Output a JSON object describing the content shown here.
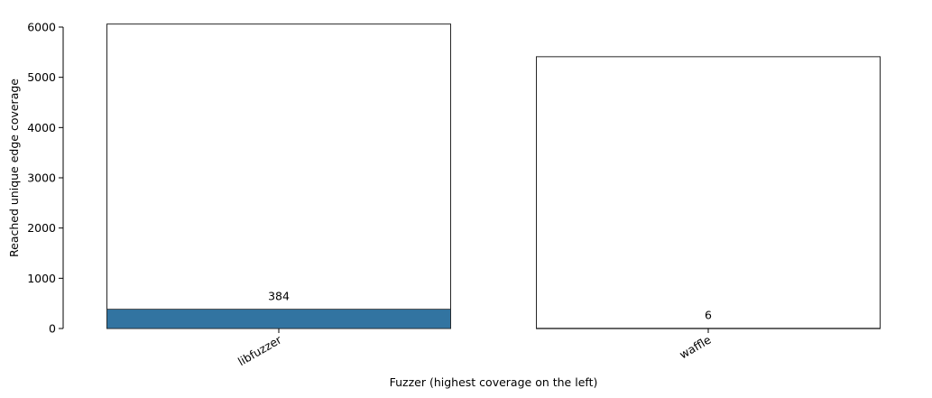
{
  "chart_data": {
    "type": "bar",
    "title": "",
    "xlabel": "Fuzzer (highest coverage on the left)",
    "ylabel": "Reached unique edge coverage",
    "categories": [
      "libfuzzer",
      "waffle"
    ],
    "series": [
      {
        "values": [
          6060,
          5410
        ],
        "fill": "none"
      },
      {
        "values": [
          384,
          6
        ],
        "fill": "#3274a1"
      }
    ],
    "data_labels": [
      "384",
      "6"
    ],
    "ylim": [
      0,
      6000
    ],
    "yticks": [
      0,
      1000,
      2000,
      3000,
      4000,
      5000,
      6000
    ],
    "ytick_labels": [
      "0",
      "1000",
      "2000",
      "3000",
      "4000",
      "5000",
      "6000"
    ],
    "grid": false,
    "legend": "none",
    "colors": {
      "filled_bar": "#3274a1",
      "outline": "#262626"
    }
  }
}
